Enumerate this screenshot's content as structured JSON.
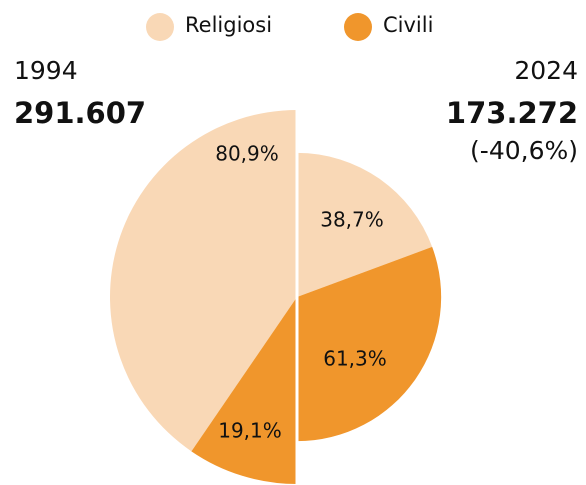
{
  "chart_data": {
    "type": "half-pie",
    "categories": [
      "Religiosi",
      "Civili"
    ],
    "colors": [
      "#f9d8b6",
      "#f0962c"
    ],
    "pies": [
      {
        "year": "1994",
        "total": {
          "value": 291607,
          "label": "291.607"
        },
        "side": "left",
        "values": [
          80.9,
          19.1
        ],
        "value_labels": [
          "80,9%",
          "19,1%"
        ]
      },
      {
        "year": "2024",
        "total": {
          "value": 173272,
          "label": "173.272"
        },
        "side": "right",
        "change": {
          "value": -40.6,
          "label": "(-40,6%)"
        },
        "values": [
          38.7,
          61.3
        ],
        "value_labels": [
          "38,7%",
          "61,3%"
        ]
      }
    ]
  }
}
